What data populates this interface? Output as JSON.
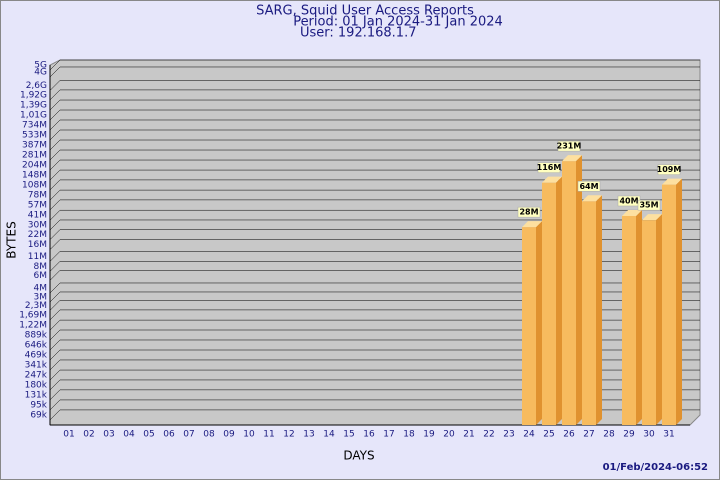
{
  "chart_data": {
    "type": "bar",
    "title": "SARG, Squid User Access Reports",
    "subtitle": "Period: 01 Jan 2024-31 Jan 2024",
    "user": "User: 192.168.1.7",
    "x_label": "DAYS",
    "y_label": "BYTES",
    "footer": "01/Feb/2024-06:52",
    "yscale": "log",
    "grid": true,
    "color": "#f7bb5e",
    "categories": [
      "01",
      "02",
      "03",
      "04",
      "05",
      "06",
      "07",
      "08",
      "09",
      "10",
      "11",
      "12",
      "13",
      "14",
      "15",
      "16",
      "17",
      "18",
      "19",
      "20",
      "21",
      "22",
      "23",
      "24",
      "25",
      "26",
      "27",
      "28",
      "29",
      "30",
      "31"
    ],
    "values": [
      null,
      null,
      null,
      null,
      null,
      null,
      null,
      null,
      null,
      null,
      null,
      null,
      null,
      null,
      null,
      null,
      null,
      null,
      null,
      null,
      null,
      null,
      null,
      28000000,
      116000000,
      231000000,
      64000000,
      null,
      40000000,
      35000000,
      109000000
    ],
    "value_labels": [
      null,
      null,
      null,
      null,
      null,
      null,
      null,
      null,
      null,
      null,
      null,
      null,
      null,
      null,
      null,
      null,
      null,
      null,
      null,
      null,
      null,
      null,
      null,
      "28M",
      "116M",
      "231M",
      "64M",
      null,
      "40M",
      "35M",
      "109M"
    ],
    "ylim": [
      50000,
      5000000000
    ],
    "yticks": [
      {
        "value": 69000,
        "label": "69k"
      },
      {
        "value": 95000,
        "label": "95k"
      },
      {
        "value": 131000,
        "label": "131k"
      },
      {
        "value": 180000,
        "label": "180k"
      },
      {
        "value": 247000,
        "label": "247k"
      },
      {
        "value": 341000,
        "label": "341k"
      },
      {
        "value": 469000,
        "label": "469k"
      },
      {
        "value": 646000,
        "label": "646k"
      },
      {
        "value": 889000,
        "label": "889k"
      },
      {
        "value": 1220000,
        "label": "1,22M"
      },
      {
        "value": 1690000,
        "label": "1,69M"
      },
      {
        "value": 2300000,
        "label": "2,3M"
      },
      {
        "value": 3000000,
        "label": "3M"
      },
      {
        "value": 4000000,
        "label": "4M"
      },
      {
        "value": 6000000,
        "label": "6M"
      },
      {
        "value": 8000000,
        "label": "8M"
      },
      {
        "value": 11000000,
        "label": "11M"
      },
      {
        "value": 16000000,
        "label": "16M"
      },
      {
        "value": 22000000,
        "label": "22M"
      },
      {
        "value": 30000000,
        "label": "30M"
      },
      {
        "value": 41000000,
        "label": "41M"
      },
      {
        "value": 57000000,
        "label": "57M"
      },
      {
        "value": 78000000,
        "label": "78M"
      },
      {
        "value": 108000000,
        "label": "108M"
      },
      {
        "value": 148000000,
        "label": "148M"
      },
      {
        "value": 204000000,
        "label": "204M"
      },
      {
        "value": 281000000,
        "label": "281M"
      },
      {
        "value": 387000000,
        "label": "387M"
      },
      {
        "value": 533000000,
        "label": "533M"
      },
      {
        "value": 734000000,
        "label": "734M"
      },
      {
        "value": 1010000000,
        "label": "1,01G"
      },
      {
        "value": 1390000000,
        "label": "1,39G"
      },
      {
        "value": 1920000000,
        "label": "1,92G"
      },
      {
        "value": 2600000000,
        "label": "2,6G"
      },
      {
        "value": 4000000000,
        "label": "4G"
      },
      {
        "value": 5000000000,
        "label": "5G"
      }
    ]
  }
}
